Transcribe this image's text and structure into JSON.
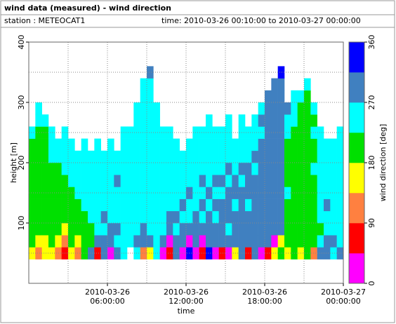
{
  "header": {
    "title": "wind data (measured) - wind direction",
    "station": "station : METEOCAT1",
    "time": "time: 2010-03-26 00:10:00 to 2010-03-27 00:00:00"
  },
  "chart_data": {
    "type": "heatmap",
    "xlabel": "time",
    "ylabel": "height [m]",
    "xlim": [
      "2010-03-26 00:00:00",
      "2010-03-27 00:00:00"
    ],
    "xticks": [
      {
        "value": "2010-03-26 06:00:00",
        "label": "2010-03-26\n06:00:00"
      },
      {
        "value": "2010-03-26 12:00:00",
        "label": "2010-03-26\n12:00:00"
      },
      {
        "value": "2010-03-26 18:00:00",
        "label": "2010-03-26\n18:00:00"
      },
      {
        "value": "2010-03-27 00:00:00",
        "label": "2010-03-27\n00:00:00"
      }
    ],
    "xminor": [
      "2010-03-26 03:00:00",
      "2010-03-26 09:00:00",
      "2010-03-26 15:00:00",
      "2010-03-26 21:00:00"
    ],
    "ylim": [
      0,
      400
    ],
    "yticks": [
      100,
      200,
      300,
      400
    ],
    "yminor": [
      50,
      150,
      250,
      350
    ],
    "grid": true,
    "x": [
      "2010-03-26 00:00:00",
      "2010-03-26 00:30:00",
      "2010-03-26 01:00:00",
      "2010-03-26 01:30:00",
      "2010-03-26 02:00:00",
      "2010-03-26 02:30:00",
      "2010-03-26 03:00:00",
      "2010-03-26 03:30:00",
      "2010-03-26 04:00:00",
      "2010-03-26 04:30:00",
      "2010-03-26 05:00:00",
      "2010-03-26 05:30:00",
      "2010-03-26 06:00:00",
      "2010-03-26 06:30:00",
      "2010-03-26 07:00:00",
      "2010-03-26 07:30:00",
      "2010-03-26 08:00:00",
      "2010-03-26 08:30:00",
      "2010-03-26 09:00:00",
      "2010-03-26 09:30:00",
      "2010-03-26 10:00:00",
      "2010-03-26 10:30:00",
      "2010-03-26 11:00:00",
      "2010-03-26 11:30:00",
      "2010-03-26 12:00:00",
      "2010-03-26 12:30:00",
      "2010-03-26 13:00:00",
      "2010-03-26 13:30:00",
      "2010-03-26 14:00:00",
      "2010-03-26 14:30:00",
      "2010-03-26 15:00:00",
      "2010-03-26 15:30:00",
      "2010-03-26 16:00:00",
      "2010-03-26 16:30:00",
      "2010-03-26 17:00:00",
      "2010-03-26 17:30:00",
      "2010-03-26 18:00:00",
      "2010-03-26 18:30:00",
      "2010-03-26 19:00:00",
      "2010-03-26 19:30:00",
      "2010-03-26 20:00:00",
      "2010-03-26 20:30:00",
      "2010-03-26 21:00:00",
      "2010-03-26 21:30:00",
      "2010-03-26 22:00:00",
      "2010-03-26 22:30:00",
      "2010-03-26 23:00:00",
      "2010-03-26 23:30:00",
      "2010-03-27 00:00:00"
    ],
    "ybins": [
      40,
      60,
      80,
      100,
      120,
      140,
      160,
      180,
      200,
      220,
      240,
      260,
      280,
      300,
      320,
      340,
      360,
      380
    ],
    "values": [
      [
        160,
        200,
        200,
        200,
        200,
        200,
        200,
        200,
        200,
        200,
        250,
        null,
        null,
        null,
        null,
        null,
        null
      ],
      [
        110,
        160,
        200,
        200,
        200,
        200,
        200,
        200,
        200,
        200,
        200,
        250,
        250,
        null,
        null,
        null,
        null
      ],
      [
        160,
        160,
        200,
        200,
        200,
        200,
        200,
        200,
        200,
        200,
        200,
        250,
        null,
        null,
        null,
        null,
        null
      ],
      [
        160,
        200,
        200,
        200,
        200,
        200,
        200,
        200,
        250,
        250,
        250,
        null,
        null,
        null,
        null,
        null,
        null
      ],
      [
        110,
        160,
        200,
        200,
        200,
        200,
        200,
        200,
        250,
        250,
        null,
        null,
        null,
        null,
        null,
        null,
        null
      ],
      [
        70,
        110,
        160,
        200,
        200,
        200,
        200,
        250,
        250,
        250,
        250,
        null,
        null,
        null,
        null,
        null,
        null
      ],
      [
        160,
        200,
        200,
        200,
        200,
        200,
        250,
        250,
        250,
        250,
        null,
        null,
        null,
        null,
        null,
        null,
        null
      ],
      [
        110,
        160,
        200,
        200,
        200,
        250,
        250,
        250,
        250,
        null,
        null,
        null,
        null,
        null,
        null,
        null,
        null
      ],
      [
        200,
        200,
        200,
        200,
        250,
        250,
        250,
        250,
        250,
        250,
        null,
        null,
        null,
        null,
        null,
        null,
        null
      ],
      [
        290,
        200,
        200,
        250,
        250,
        250,
        250,
        250,
        250,
        null,
        null,
        null,
        null,
        null,
        null,
        null,
        null
      ],
      [
        70,
        290,
        250,
        250,
        250,
        250,
        250,
        250,
        250,
        250,
        null,
        null,
        null,
        null,
        null,
        null,
        null
      ],
      [
        290,
        290,
        250,
        290,
        250,
        250,
        250,
        250,
        250,
        null,
        null,
        null,
        null,
        null,
        null,
        null,
        null
      ],
      [
        20,
        290,
        290,
        250,
        250,
        250,
        250,
        250,
        250,
        250,
        null,
        null,
        null,
        null,
        null,
        null,
        null
      ],
      [
        290,
        250,
        290,
        250,
        250,
        250,
        290,
        250,
        250,
        null,
        null,
        null,
        null,
        null,
        null,
        null,
        null
      ],
      [
        250,
        250,
        250,
        250,
        250,
        250,
        250,
        250,
        250,
        250,
        250,
        null,
        null,
        null,
        null,
        null,
        null
      ],
      [
        null,
        250,
        250,
        250,
        250,
        250,
        250,
        250,
        250,
        250,
        250,
        null,
        null,
        null,
        null,
        null,
        null
      ],
      [
        250,
        290,
        250,
        250,
        250,
        250,
        250,
        250,
        250,
        250,
        250,
        250,
        250,
        null,
        null,
        null,
        null
      ],
      [
        110,
        290,
        290,
        250,
        250,
        250,
        250,
        250,
        250,
        250,
        250,
        250,
        250,
        250,
        250,
        null,
        null
      ],
      [
        160,
        290,
        250,
        250,
        250,
        250,
        250,
        250,
        250,
        250,
        250,
        250,
        250,
        250,
        250,
        290,
        null
      ],
      [
        250,
        250,
        250,
        250,
        250,
        250,
        250,
        250,
        250,
        250,
        250,
        250,
        250,
        null,
        null,
        null,
        null
      ],
      [
        20,
        290,
        250,
        250,
        250,
        250,
        250,
        250,
        250,
        250,
        250,
        null,
        null,
        null,
        null,
        null,
        null
      ],
      [
        70,
        20,
        290,
        290,
        250,
        250,
        250,
        250,
        250,
        250,
        250,
        null,
        null,
        null,
        null,
        null,
        null
      ],
      [
        290,
        290,
        250,
        290,
        250,
        250,
        250,
        250,
        250,
        250,
        null,
        null,
        null,
        null,
        null,
        null,
        null
      ],
      [
        20,
        290,
        290,
        250,
        290,
        250,
        250,
        250,
        250,
        null,
        null,
        null,
        null,
        null,
        null,
        null,
        null
      ],
      [
        340,
        20,
        290,
        250,
        250,
        290,
        250,
        250,
        250,
        250,
        null,
        null,
        null,
        null,
        null,
        null,
        null
      ],
      [
        20,
        290,
        290,
        290,
        250,
        250,
        250,
        250,
        250,
        250,
        250,
        null,
        null,
        null,
        null,
        null,
        null
      ],
      [
        70,
        20,
        290,
        250,
        290,
        250,
        290,
        250,
        250,
        250,
        250,
        null,
        null,
        null,
        null,
        null,
        null
      ],
      [
        340,
        290,
        290,
        290,
        250,
        290,
        250,
        250,
        250,
        250,
        250,
        250,
        null,
        null,
        null,
        null,
        null
      ],
      [
        20,
        290,
        290,
        250,
        290,
        250,
        290,
        250,
        250,
        250,
        250,
        null,
        null,
        null,
        null,
        null,
        null
      ],
      [
        70,
        290,
        290,
        290,
        290,
        250,
        290,
        250,
        250,
        250,
        250,
        null,
        null,
        null,
        null,
        null,
        null
      ],
      [
        20,
        290,
        250,
        290,
        290,
        290,
        250,
        290,
        250,
        250,
        250,
        250,
        null,
        null,
        null,
        null,
        null
      ],
      [
        160,
        290,
        290,
        290,
        250,
        290,
        290,
        250,
        250,
        250,
        null,
        null,
        null,
        null,
        null,
        null,
        null
      ],
      [
        290,
        290,
        290,
        290,
        290,
        290,
        250,
        290,
        250,
        250,
        250,
        250,
        null,
        null,
        null,
        null,
        null
      ],
      [
        70,
        290,
        290,
        290,
        250,
        290,
        290,
        290,
        250,
        250,
        250,
        null,
        null,
        null,
        null,
        null,
        null
      ],
      [
        290,
        290,
        290,
        290,
        290,
        290,
        290,
        250,
        290,
        250,
        250,
        250,
        null,
        null,
        null,
        null,
        null
      ],
      [
        20,
        290,
        290,
        290,
        290,
        290,
        290,
        290,
        290,
        290,
        250,
        290,
        250,
        null,
        null,
        null,
        null
      ],
      [
        70,
        290,
        290,
        290,
        290,
        290,
        290,
        290,
        290,
        290,
        290,
        290,
        290,
        290,
        null,
        null,
        null
      ],
      [
        160,
        20,
        290,
        290,
        290,
        290,
        290,
        290,
        290,
        290,
        290,
        290,
        290,
        290,
        290,
        null,
        null
      ],
      [
        200,
        160,
        290,
        290,
        290,
        290,
        290,
        290,
        290,
        290,
        290,
        290,
        290,
        290,
        290,
        340,
        null
      ],
      [
        160,
        200,
        200,
        200,
        200,
        250,
        200,
        200,
        200,
        200,
        250,
        250,
        290,
        null,
        null,
        null,
        null
      ],
      [
        200,
        200,
        200,
        200,
        200,
        200,
        200,
        200,
        200,
        200,
        200,
        250,
        250,
        250,
        null,
        null,
        null
      ],
      [
        160,
        200,
        200,
        200,
        200,
        200,
        200,
        200,
        200,
        200,
        200,
        200,
        200,
        250,
        null,
        null,
        null
      ],
      [
        200,
        200,
        200,
        200,
        200,
        200,
        200,
        200,
        200,
        200,
        200,
        200,
        200,
        200,
        250,
        null,
        null
      ],
      [
        110,
        200,
        200,
        200,
        200,
        200,
        200,
        250,
        200,
        200,
        250,
        200,
        250,
        null,
        null,
        null,
        null
      ],
      [
        290,
        250,
        200,
        250,
        250,
        250,
        250,
        250,
        250,
        250,
        250,
        null,
        null,
        null,
        null,
        null,
        null
      ],
      [
        290,
        290,
        250,
        250,
        290,
        250,
        250,
        250,
        250,
        250,
        null,
        null,
        null,
        null,
        null,
        null,
        null
      ],
      [
        250,
        290,
        250,
        250,
        250,
        250,
        250,
        250,
        250,
        250,
        null,
        null,
        null,
        null,
        null,
        null,
        null
      ],
      [
        290,
        250,
        250,
        250,
        250,
        250,
        250,
        250,
        250,
        250,
        250,
        null,
        null,
        null,
        null,
        null,
        null
      ]
    ],
    "colorbar": {
      "label": "wind direction [deg]",
      "lim": [
        0,
        360
      ],
      "ticks": [
        0,
        90,
        180,
        270,
        360
      ],
      "colors": [
        "#ff00ff",
        "#ff0000",
        "#ff8040",
        "#ffff00",
        "#00e000",
        "#00ffff",
        "#4080c0",
        "#0000ff"
      ]
    }
  }
}
